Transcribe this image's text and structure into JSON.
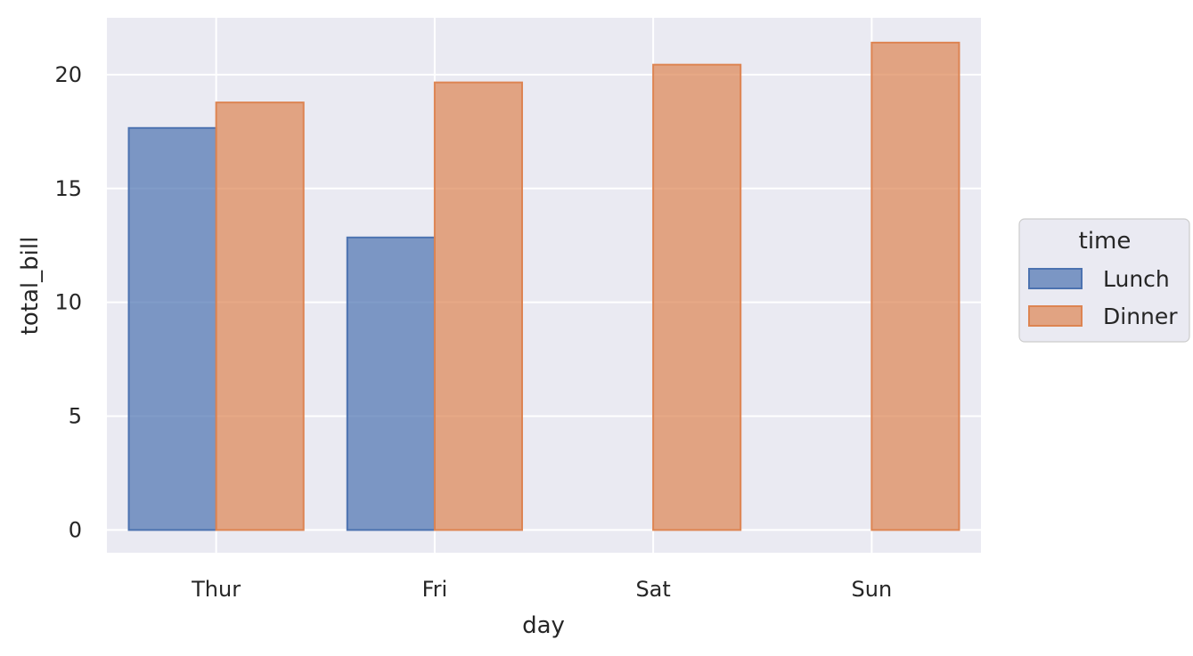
{
  "chart_data": {
    "type": "bar",
    "title": "",
    "xlabel": "day",
    "ylabel": "total_bill",
    "categories": [
      "Thur",
      "Fri",
      "Sat",
      "Sun"
    ],
    "series": [
      {
        "name": "Lunch",
        "values": [
          17.66,
          12.85,
          null,
          null
        ],
        "color": "#4c72b0"
      },
      {
        "name": "Dinner",
        "values": [
          18.78,
          19.66,
          20.44,
          21.41
        ],
        "color": "#dd8452"
      }
    ],
    "ylim": [
      -1.0,
      22.5
    ],
    "yticks": [
      0,
      5,
      10,
      15,
      20
    ],
    "grid": true,
    "legend": {
      "title": "time",
      "placement": "right"
    },
    "colors": {
      "background": "#eaeaf2",
      "grid": "#ffffff",
      "lunch": "#4c72b0",
      "dinner": "#dd8452"
    }
  }
}
